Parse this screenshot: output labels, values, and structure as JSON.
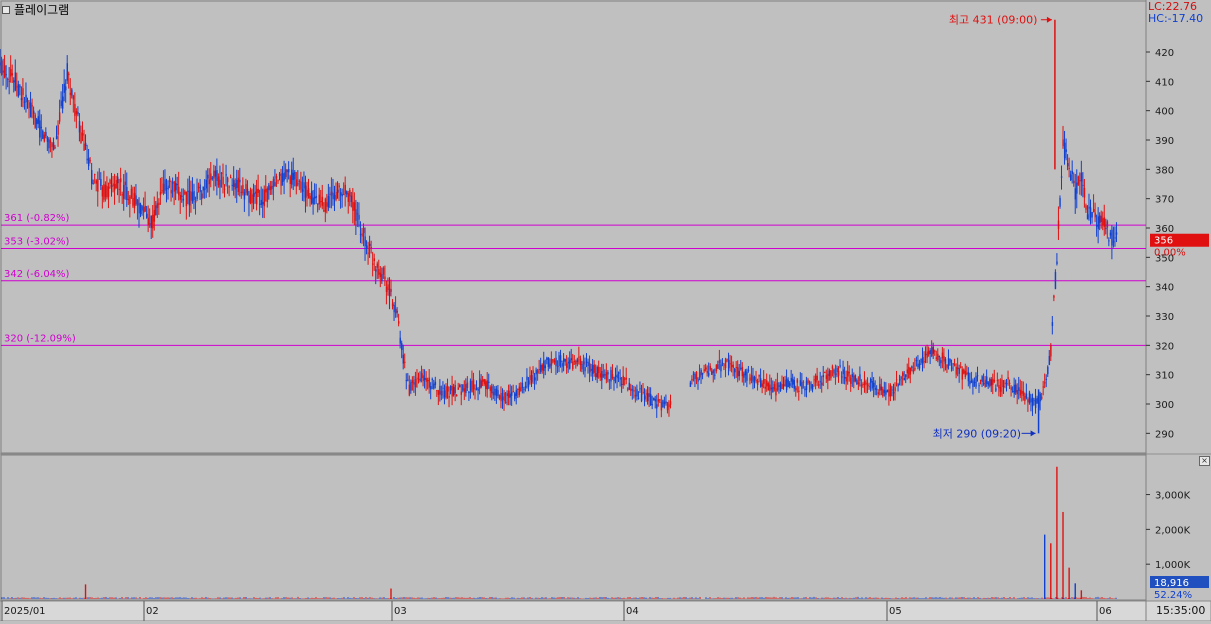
{
  "stock_name": "플레이그램",
  "lc_label": "LC:22.76",
  "hc_label": "HC:-17.40",
  "high_annotation": "최고 431 (09:00)",
  "low_annotation": "최저 290 (09:20)",
  "current_price_badge": "356",
  "current_change_label": "0.00%",
  "current_volume_badge": "18,916",
  "volume_ratio_label": "52.24%",
  "time_label": "15:35:00",
  "colors": {
    "background": "#c0c0c0",
    "up": "#e01010",
    "down": "#1040d0",
    "level_line": "#d000d0",
    "price_badge": "#e01010",
    "volume_badge": "#2050c0"
  },
  "chart_data": [
    {
      "type": "candlestick",
      "panel": "price",
      "x_labels": [
        "2025/01",
        "02",
        "03",
        "04",
        "05",
        "06"
      ],
      "y_ticks": [
        290,
        300,
        310,
        320,
        330,
        340,
        350,
        360,
        370,
        380,
        390,
        400,
        410,
        420
      ],
      "ylim": [
        281,
        434
      ],
      "high": {
        "value": 431,
        "time": "09:00"
      },
      "low": {
        "value": 290,
        "time": "09:20"
      },
      "current": 356,
      "levels": [
        {
          "value": 361,
          "label": "361 (-0.82%)"
        },
        {
          "value": 353,
          "label": "353 (-3.02%)"
        },
        {
          "value": 342,
          "label": "342 (-6.04%)"
        },
        {
          "value": 320,
          "label": "320 (-12.09%)"
        }
      ],
      "series_trace": [
        [
          0,
          415
        ],
        [
          2,
          412
        ],
        [
          5,
          400
        ],
        [
          7,
          392
        ],
        [
          9,
          388
        ],
        [
          11,
          413
        ],
        [
          13,
          394
        ],
        [
          15,
          378
        ],
        [
          17,
          372
        ],
        [
          19,
          375
        ],
        [
          21,
          372
        ],
        [
          23,
          367
        ],
        [
          25,
          362
        ],
        [
          27,
          375
        ],
        [
          29,
          372
        ],
        [
          31,
          370
        ],
        [
          33,
          373
        ],
        [
          35,
          378
        ],
        [
          37,
          376
        ],
        [
          39,
          374
        ],
        [
          41,
          371
        ],
        [
          43,
          370
        ],
        [
          45,
          374
        ],
        [
          47,
          379
        ],
        [
          49,
          375
        ],
        [
          51,
          370
        ],
        [
          53,
          368
        ],
        [
          55,
          372
        ],
        [
          57,
          372
        ],
        [
          59,
          360
        ],
        [
          61,
          350
        ],
        [
          63,
          343
        ],
        [
          65,
          330
        ],
        [
          66,
          315
        ],
        [
          67,
          305
        ],
        [
          69,
          309
        ],
        [
          71,
          306
        ],
        [
          73,
          304
        ],
        [
          75,
          305
        ],
        [
          77,
          306
        ],
        [
          79,
          307
        ],
        [
          81,
          304
        ],
        [
          83,
          302
        ],
        [
          85,
          305
        ],
        [
          87,
          309
        ],
        [
          89,
          313
        ],
        [
          91,
          315
        ],
        [
          93,
          314
        ],
        [
          95,
          314
        ],
        [
          97,
          312
        ],
        [
          99,
          309
        ],
        [
          101,
          310
        ],
        [
          103,
          306
        ],
        [
          105,
          303
        ],
        [
          107,
          301
        ],
        [
          109,
          299
        ],
        [
          110,
          299
        ],
        [
          111,
          null
        ],
        [
          113,
          308
        ],
        [
          115,
          310
        ],
        [
          117,
          312
        ],
        [
          119,
          314
        ],
        [
          121,
          311
        ],
        [
          123,
          309
        ],
        [
          125,
          307
        ],
        [
          127,
          305
        ],
        [
          129,
          307
        ],
        [
          131,
          306
        ],
        [
          133,
          307
        ],
        [
          135,
          309
        ],
        [
          137,
          312
        ],
        [
          139,
          309
        ],
        [
          141,
          308
        ],
        [
          143,
          307
        ],
        [
          145,
          303
        ],
        [
          147,
          307
        ],
        [
          149,
          311
        ],
        [
          151,
          315
        ],
        [
          153,
          318
        ],
        [
          155,
          314
        ],
        [
          157,
          311
        ],
        [
          159,
          308
        ],
        [
          161,
          308
        ],
        [
          163,
          306
        ],
        [
          165,
          307
        ],
        [
          167,
          304
        ],
        [
          169,
          301
        ],
        [
          170,
          300
        ],
        [
          171,
          306
        ],
        [
          172,
          318
        ],
        [
          173,
          350
        ],
        [
          174,
          388
        ],
        [
          175,
          381
        ],
        [
          176,
          372
        ],
        [
          177,
          378
        ],
        [
          178,
          366
        ],
        [
          179,
          364
        ],
        [
          180,
          362
        ],
        [
          181,
          360
        ],
        [
          182,
          357
        ],
        [
          183,
          356
        ]
      ],
      "trace_x_range": [
        0,
        183
      ]
    },
    {
      "type": "bar",
      "panel": "volume",
      "y_ticks": [
        "1,000K",
        "2,000K",
        "3,000K"
      ],
      "y_tick_values": [
        1000,
        2000,
        3000
      ],
      "ylim": [
        0,
        4050
      ],
      "unit": "K",
      "current_volume": 18916,
      "volume_ratio": "52.24%",
      "spikes": [
        {
          "day": 14,
          "value": 420
        },
        {
          "day": 64,
          "value": 300
        },
        {
          "day": 171,
          "value": 1850
        },
        {
          "day": 172,
          "value": 1600
        },
        {
          "day": 173,
          "value": 3800
        },
        {
          "day": 174,
          "value": 2500
        },
        {
          "day": 175,
          "value": 900
        },
        {
          "day": 176,
          "value": 450
        },
        {
          "day": 177,
          "value": 250
        }
      ]
    }
  ]
}
